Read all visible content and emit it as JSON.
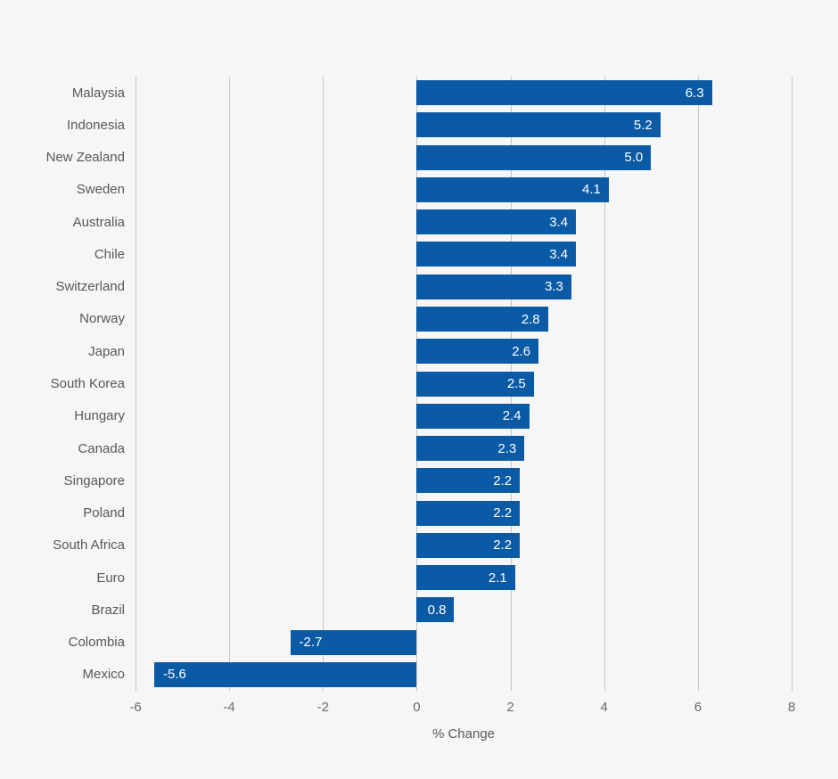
{
  "chart_data": {
    "type": "bar",
    "orientation": "horizontal",
    "categories": [
      "Malaysia",
      "Indonesia",
      "New Zealand",
      "Sweden",
      "Australia",
      "Chile",
      "Switzerland",
      "Norway",
      "Japan",
      "South Korea",
      "Hungary",
      "Canada",
      "Singapore",
      "Poland",
      "South Africa",
      "Euro",
      "Brazil",
      "Colombia",
      "Mexico"
    ],
    "values": [
      6.3,
      5.2,
      5.0,
      4.1,
      3.4,
      3.4,
      3.3,
      2.8,
      2.6,
      2.5,
      2.4,
      2.3,
      2.2,
      2.2,
      2.2,
      2.1,
      0.8,
      -2.7,
      -5.6
    ],
    "value_labels": [
      "6.3",
      "5.2",
      "5.0",
      "4.1",
      "3.4",
      "3.4",
      "3.3",
      "2.8",
      "2.6",
      "2.5",
      "2.4",
      "2.3",
      "2.2",
      "2.2",
      "2.2",
      "2.1",
      "0.8",
      "-2.7",
      "-5.6"
    ],
    "xlabel": "% Change",
    "x_ticks": [
      -6,
      -4,
      -2,
      0,
      2,
      4,
      6,
      8
    ],
    "x_tick_labels": [
      "-6",
      "-4",
      "-2",
      "0",
      "2",
      "4",
      "6",
      "8"
    ],
    "xlim": [
      -6,
      8
    ],
    "grid": "vertical-gridlines",
    "legend": "none",
    "value_label_position": "inside-end",
    "colors": {
      "bar": "#0a5aa5",
      "background": "#f6f6f6",
      "gridline": "#c6c6c6",
      "category_text": "#58585a",
      "tick_text": "#6a6a6a",
      "value_text": "#ffffff"
    }
  }
}
